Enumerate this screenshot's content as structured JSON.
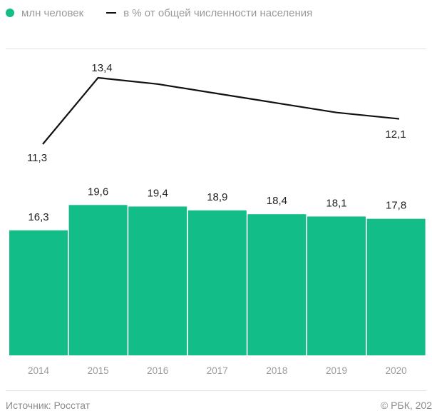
{
  "legend": {
    "bars_label": "млн человек",
    "line_label": "в % от общей численности населения"
  },
  "colors": {
    "bars": "#12bd87",
    "line": "#111111"
  },
  "footer": {
    "source": "Источник: Росстат",
    "credit": "© РБК, 202"
  },
  "chart_data": {
    "type": "bar",
    "categories": [
      "2014",
      "2015",
      "2016",
      "2017",
      "2018",
      "2019",
      "2020"
    ],
    "series": [
      {
        "name": "млн человек",
        "type": "bar",
        "values": [
          16.3,
          19.6,
          19.4,
          18.9,
          18.4,
          18.1,
          17.8
        ],
        "labels": [
          "16,3",
          "19,6",
          "19,4",
          "18,9",
          "18,4",
          "18,1",
          "17,8"
        ]
      },
      {
        "name": "в % от общей численности населения",
        "type": "line",
        "values": [
          11.3,
          13.4,
          13.2,
          12.9,
          12.6,
          12.3,
          12.1
        ],
        "labels": [
          "11,3",
          "13,4",
          "",
          "",
          "",
          "",
          "12,1"
        ]
      }
    ],
    "grid": false,
    "legend_position": "top-left"
  }
}
